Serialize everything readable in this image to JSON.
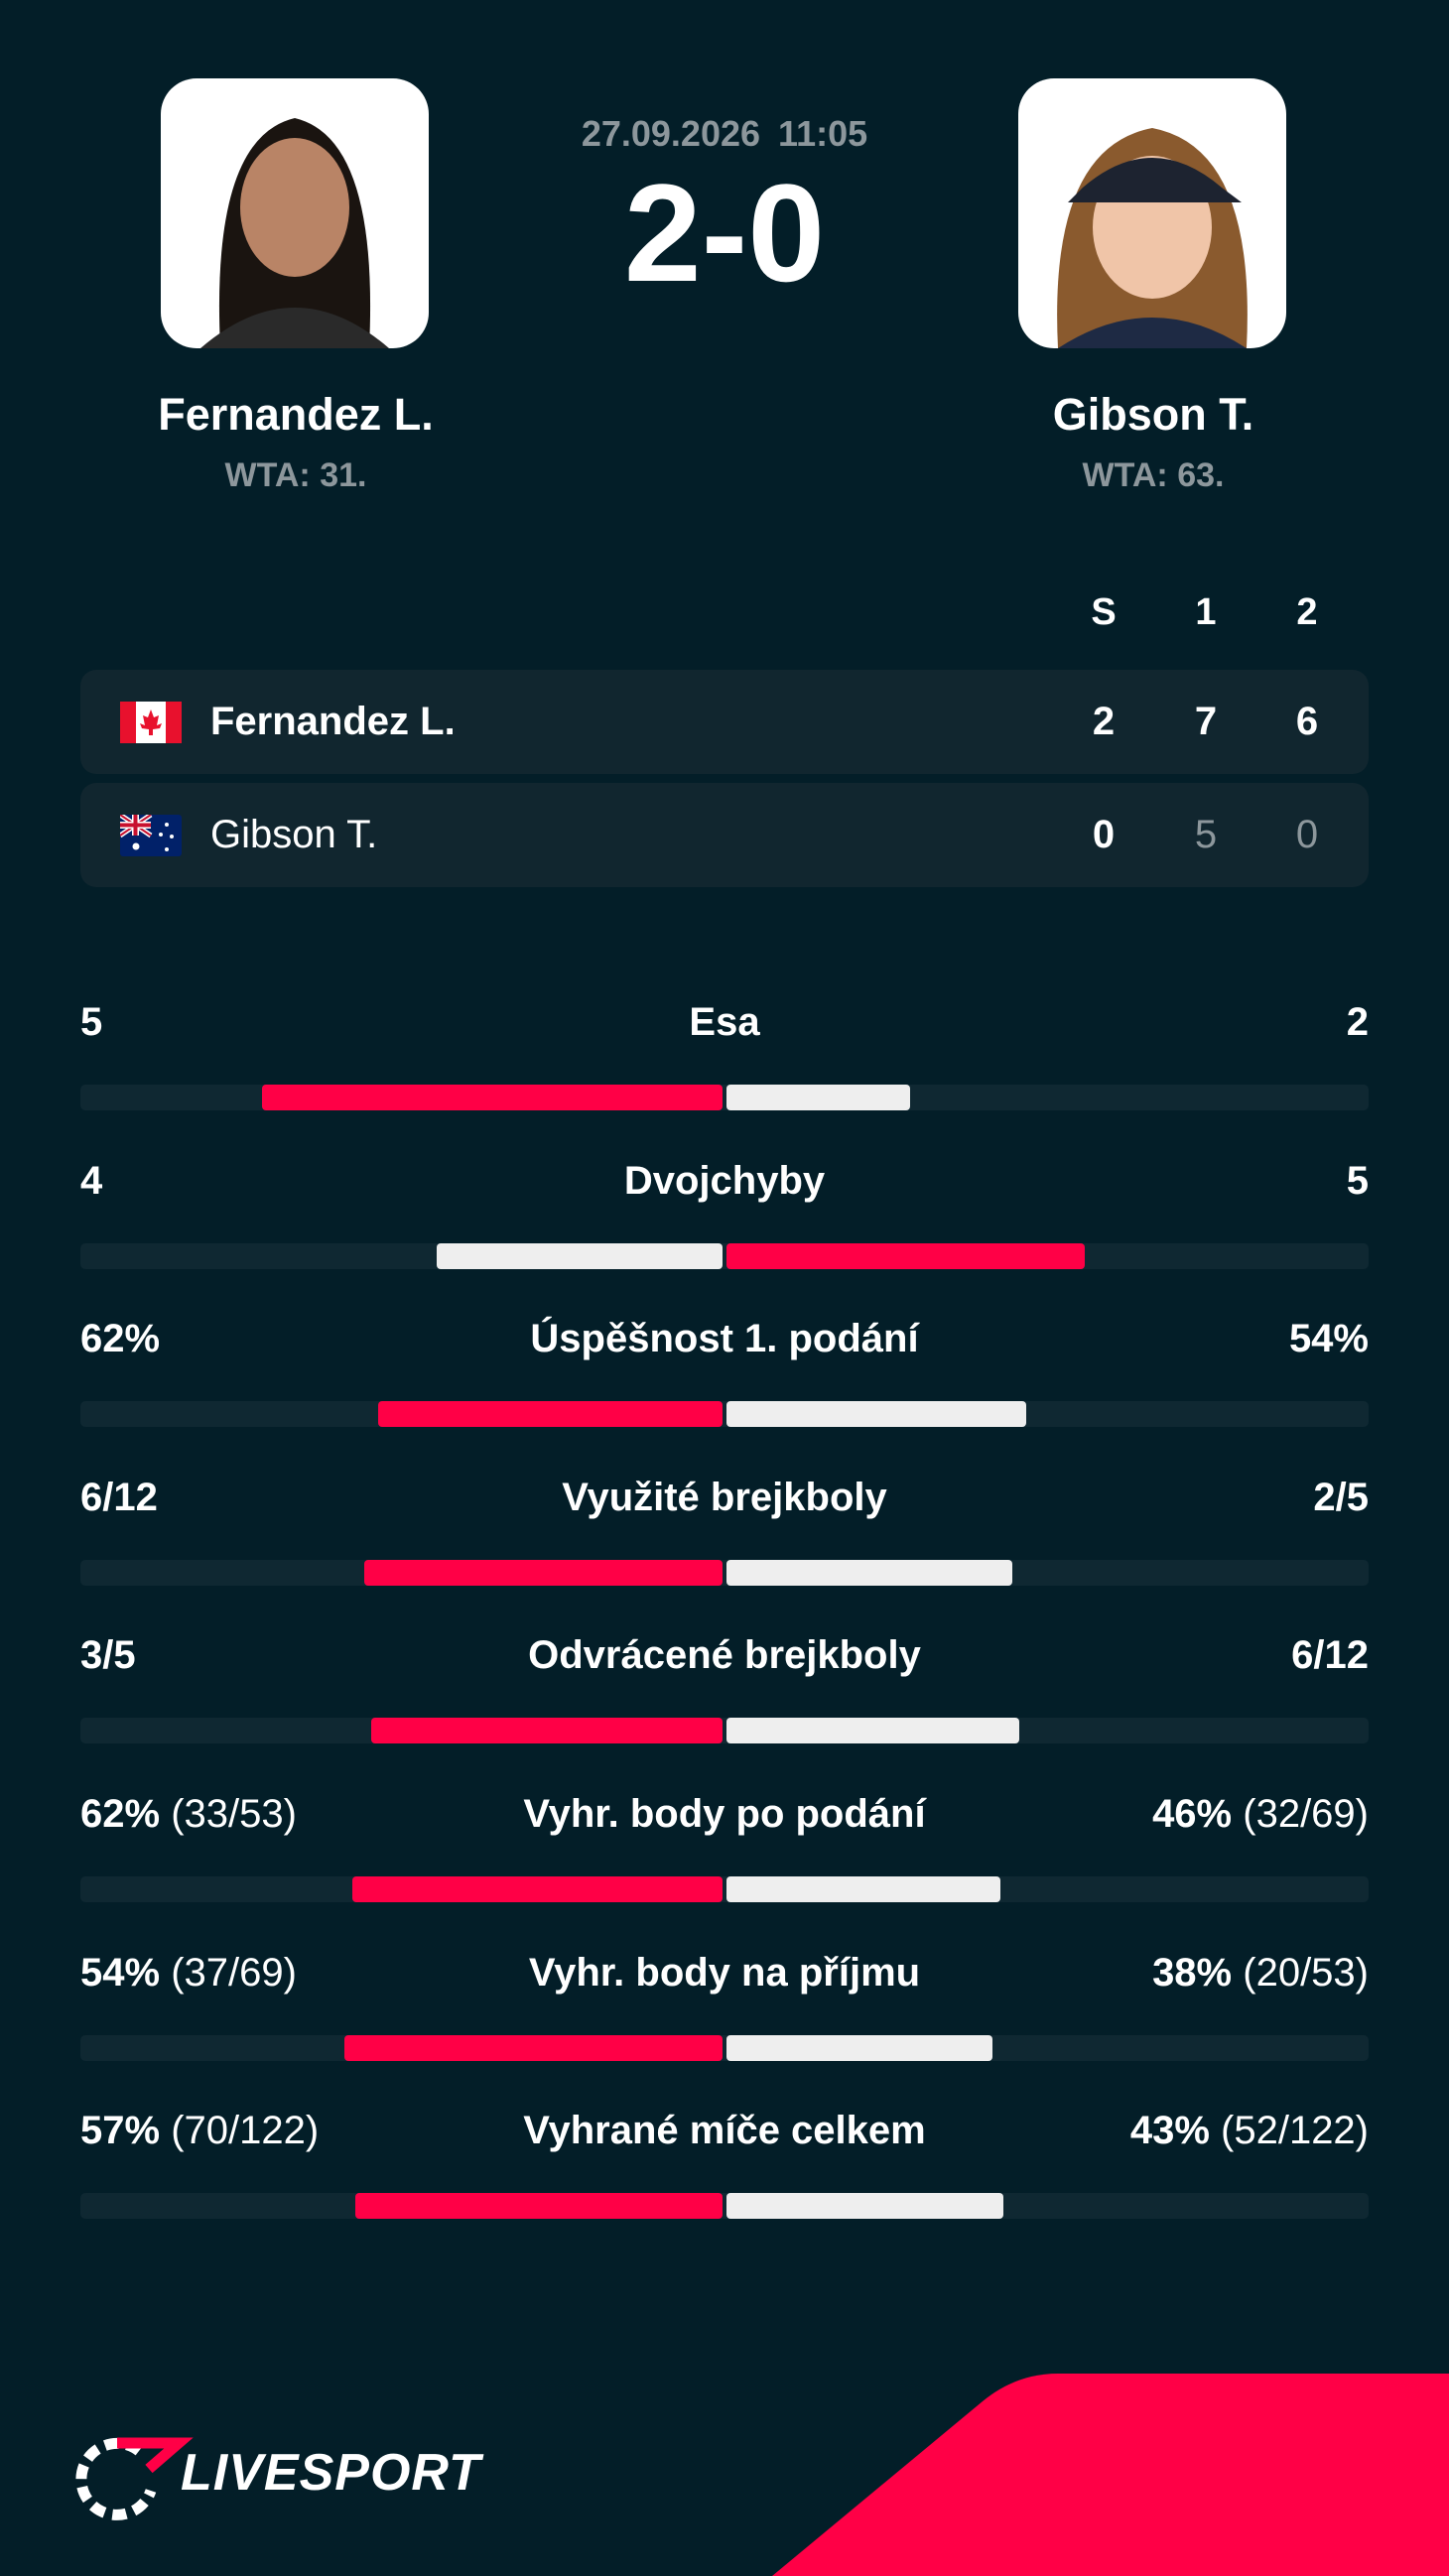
{
  "match": {
    "date": "27.09.2026",
    "time": "11:05",
    "score": "2-0"
  },
  "players": [
    {
      "name": "Fernandez L.",
      "rank": "WTA: 31."
    },
    {
      "name": "Gibson T.",
      "rank": "WTA: 63."
    }
  ],
  "scoreboard": {
    "headers": [
      "S",
      "1",
      "2"
    ],
    "rows": [
      {
        "name": "Fernandez L.",
        "scores": [
          2,
          7,
          6
        ]
      },
      {
        "name": "Gibson T.",
        "scores": [
          0,
          5,
          0
        ]
      }
    ]
  },
  "stats": [
    {
      "label": "Esa",
      "home": "5",
      "away": "2"
    },
    {
      "label": "Dvojchyby",
      "home": "4",
      "away": "5"
    },
    {
      "label": "Úspěšnost 1. podání",
      "home": "62%",
      "away": "54%"
    },
    {
      "label": "Využité brejkboly",
      "home": "6/12",
      "away": "2/5"
    },
    {
      "label": "Odvrácené brejkboly",
      "home": "3/5",
      "away": "6/12"
    },
    {
      "label": "Vyhr. body po podání",
      "home": "62%",
      "home_detail": "(33/53)",
      "away": "46%",
      "away_detail": "(32/69)"
    },
    {
      "label": "Vyhr. body na příjmu",
      "home": "54%",
      "home_detail": "(37/69)",
      "away": "38%",
      "away_detail": "(20/53)"
    },
    {
      "label": "Vyhrané míče celkem",
      "home": "57%",
      "home_detail": "(70/122)",
      "away": "43%",
      "away_detail": "(52/122)"
    }
  ],
  "brand": "LIVESPORT"
}
